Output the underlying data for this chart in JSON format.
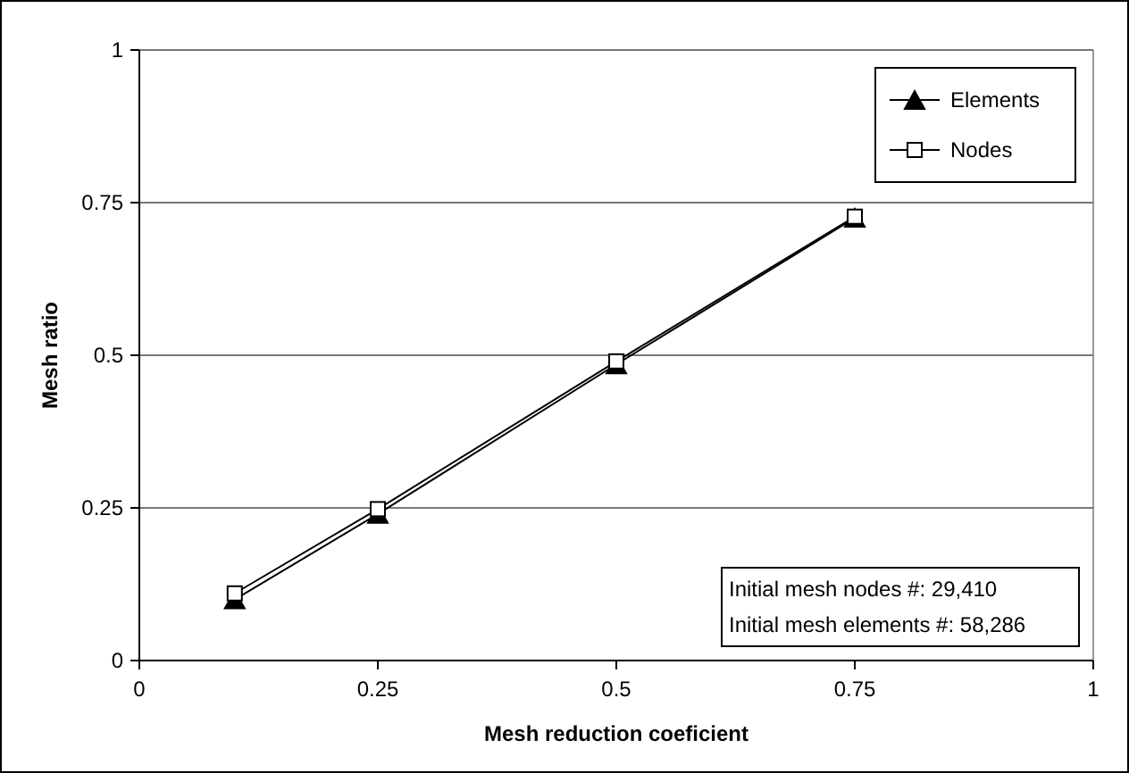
{
  "chart_data": {
    "type": "line",
    "xlabel": "Mesh reduction coeficient",
    "ylabel": "Mesh ratio",
    "x": [
      0.1,
      0.25,
      0.5,
      0.75
    ],
    "series": [
      {
        "name": "Elements",
        "color": "#000000",
        "marker": "triangle",
        "values": [
          0.1,
          0.24,
          0.485,
          0.725
        ]
      },
      {
        "name": "Nodes",
        "color": "#000000",
        "marker": "square",
        "values": [
          0.11,
          0.248,
          0.49,
          0.727
        ]
      }
    ],
    "xlim": [
      0,
      1
    ],
    "xticks": [
      0,
      0.25,
      0.5,
      0.75,
      1
    ],
    "ylim": [
      0,
      1
    ],
    "yticks": [
      0,
      0.25,
      0.5,
      0.75,
      1
    ],
    "grid": "y",
    "legend": "top right",
    "annotations": [
      "Initial mesh nodes #: 29,410",
      "Initial mesh elements #: 58,286"
    ]
  }
}
